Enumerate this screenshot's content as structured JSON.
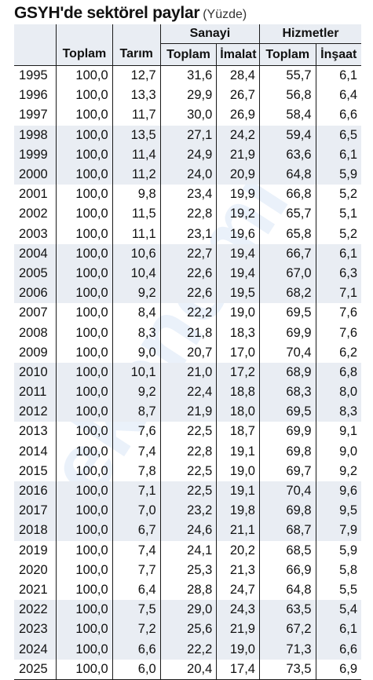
{
  "title": {
    "main": "GSYH'de sektörel paylar",
    "unit": "(Yüzde)"
  },
  "watermark": "ekonomi",
  "chart_data": {
    "type": "table",
    "group_headers": [
      "Sanayi",
      "Hizmetler"
    ],
    "columns": [
      "Toplam",
      "Tarım",
      "Toplam",
      "İmalat",
      "Toplam",
      "İnşaat"
    ],
    "shaded_rows": [
      1998,
      1999,
      2000,
      2004,
      2005,
      2006,
      2010,
      2011,
      2012,
      2016,
      2017,
      2018,
      2022,
      2023,
      2024
    ],
    "rows": [
      [
        "1995",
        "100,0",
        "12,7",
        "31,6",
        "28,4",
        "55,7",
        "6,1"
      ],
      [
        "1996",
        "100,0",
        "13,3",
        "29,9",
        "26,7",
        "56,8",
        "6,4"
      ],
      [
        "1997",
        "100,0",
        "11,7",
        "30,0",
        "26,9",
        "58,4",
        "6,6"
      ],
      [
        "1998",
        "100,0",
        "13,5",
        "27,1",
        "24,2",
        "59,4",
        "6,5"
      ],
      [
        "1999",
        "100,0",
        "11,4",
        "24,9",
        "21,9",
        "63,6",
        "6,1"
      ],
      [
        "2000",
        "100,0",
        "11,2",
        "24,0",
        "20,9",
        "64,8",
        "5,9"
      ],
      [
        "2001",
        "100,0",
        "9,8",
        "23,4",
        "19,9",
        "66,8",
        "5,2"
      ],
      [
        "2002",
        "100,0",
        "11,5",
        "22,8",
        "19,2",
        "65,7",
        "5,1"
      ],
      [
        "2003",
        "100,0",
        "11,1",
        "23,1",
        "19,6",
        "65,8",
        "5,2"
      ],
      [
        "2004",
        "100,0",
        "10,6",
        "22,7",
        "19,4",
        "66,7",
        "6,1"
      ],
      [
        "2005",
        "100,0",
        "10,4",
        "22,6",
        "19,4",
        "67,0",
        "6,3"
      ],
      [
        "2006",
        "100,0",
        "9,2",
        "22,6",
        "19,5",
        "68,2",
        "7,1"
      ],
      [
        "2007",
        "100,0",
        "8,4",
        "22,2",
        "19,0",
        "69,5",
        "7,6"
      ],
      [
        "2008",
        "100,0",
        "8,3",
        "21,8",
        "18,3",
        "69,9",
        "7,6"
      ],
      [
        "2009",
        "100,0",
        "9,0",
        "20,7",
        "17,0",
        "70,4",
        "6,2"
      ],
      [
        "2010",
        "100,0",
        "10,1",
        "21,0",
        "17,2",
        "68,9",
        "6,8"
      ],
      [
        "2011",
        "100,0",
        "9,2",
        "22,4",
        "18,8",
        "68,3",
        "8,0"
      ],
      [
        "2012",
        "100,0",
        "8,7",
        "21,9",
        "18,0",
        "69,5",
        "8,3"
      ],
      [
        "2013",
        "100,0",
        "7,6",
        "22,5",
        "18,7",
        "69,9",
        "9,1"
      ],
      [
        "2014",
        "100,0",
        "7,4",
        "22,8",
        "19,1",
        "69,8",
        "9,0"
      ],
      [
        "2015",
        "100,0",
        "7,8",
        "22,5",
        "19,0",
        "69,7",
        "9,2"
      ],
      [
        "2016",
        "100,0",
        "7,1",
        "22,5",
        "19,1",
        "70,4",
        "9,6"
      ],
      [
        "2017",
        "100,0",
        "7,0",
        "23,2",
        "19,8",
        "69,8",
        "9,5"
      ],
      [
        "2018",
        "100,0",
        "6,7",
        "24,6",
        "21,1",
        "68,7",
        "7,9"
      ],
      [
        "2019",
        "100,0",
        "7,4",
        "24,1",
        "20,2",
        "68,5",
        "5,9"
      ],
      [
        "2020",
        "100,0",
        "7,7",
        "25,3",
        "21,3",
        "66,9",
        "5,8"
      ],
      [
        "2021",
        "100,0",
        "6,4",
        "28,8",
        "24,7",
        "64,8",
        "5,5"
      ],
      [
        "2022",
        "100,0",
        "7,5",
        "29,0",
        "24,3",
        "63,5",
        "5,4"
      ],
      [
        "2023",
        "100,0",
        "7,2",
        "25,6",
        "21,9",
        "67,2",
        "6,1"
      ],
      [
        "2024",
        "100,0",
        "6,6",
        "22,2",
        "19,0",
        "71,3",
        "6,6"
      ],
      [
        "2025",
        "100,0",
        "6,0",
        "20,4",
        "17,4",
        "73,5",
        "6,9"
      ]
    ]
  },
  "colors": {
    "shade": "#e9edf3",
    "rule": "#1b1b1b",
    "watermark": "#3a7bd5"
  }
}
